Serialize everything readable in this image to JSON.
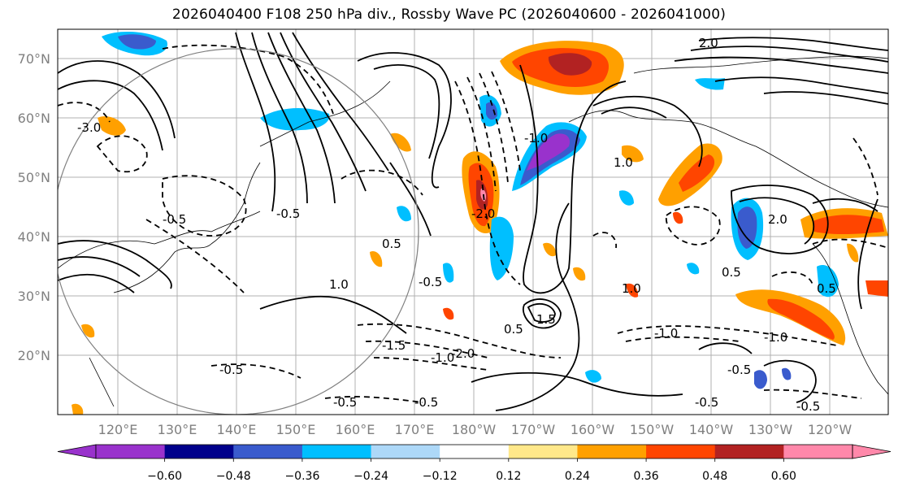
{
  "title": "2026040400 F108 250 hPa div., Rossby Wave PC (2026040600 - 2026041000)",
  "latitude_labels": [
    "70°N",
    "60°N",
    "50°N",
    "40°N",
    "30°N",
    "20°N"
  ],
  "longitude_labels": [
    "120°E",
    "130°E",
    "140°E",
    "150°E",
    "160°E",
    "170°E",
    "180°W",
    "170°W",
    "160°W",
    "150°W",
    "140°W",
    "130°W",
    "120°W"
  ],
  "colorbar": {
    "colors": [
      "#9932cc",
      "#00008b",
      "#3a5bcd",
      "#00bfff",
      "#add8f8",
      "#ffffff",
      "#ffe88a",
      "#ffa000",
      "#ff4500",
      "#b22222",
      "#ff88aa"
    ],
    "extend_low_color": "#9932cc",
    "extend_high_color": "#ff88aa",
    "tick_labels": [
      "−0.60",
      "−0.48",
      "−0.36",
      "−0.24",
      "−0.12",
      "0.12",
      "0.24",
      "0.36",
      "0.48",
      "0.60"
    ]
  },
  "contour_labels": [
    "-0.5",
    "-0.5",
    "-0.5",
    "-0.5",
    "-1.0",
    "-1.0",
    "-1.5",
    "-0.5",
    "0.5",
    "0.5",
    "1.0",
    "1.0",
    "1.5",
    "2.0",
    "0.5",
    "-0.5",
    "-1.0",
    "-2.0",
    "-0.5",
    "0.5",
    "-0.5",
    "1.0",
    "-1.0",
    "-0.5",
    "-3.0",
    "2.0",
    "-2.0"
  ]
}
